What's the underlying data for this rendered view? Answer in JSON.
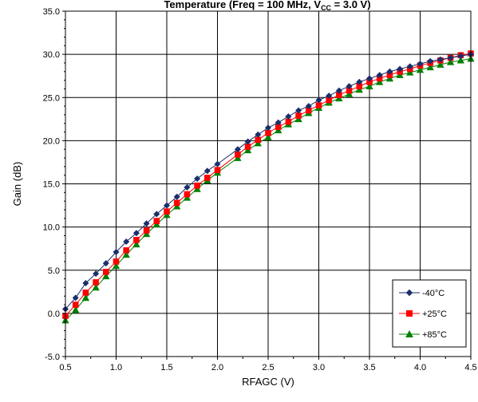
{
  "chart_data": {
    "type": "line",
    "title": {
      "prefix": "Temperature (Freq = 100 MHz, V",
      "subscript": "CC",
      "suffix": " = 3.0 V)"
    },
    "xlabel": "RFAGC (V)",
    "ylabel": "Gain (dB)",
    "xlim": [
      0.5,
      4.5
    ],
    "ylim": [
      -5.0,
      35.0
    ],
    "x_ticks": [
      "0.5",
      "1.0",
      "1.5",
      "2.0",
      "2.5",
      "3.0",
      "3.5",
      "4.0",
      "4.5"
    ],
    "y_ticks": [
      "-5.0",
      "0.0",
      "5.0",
      "10.0",
      "15.0",
      "20.0",
      "25.0",
      "30.0",
      "35.0"
    ],
    "grid": true,
    "legend_position": "bottom-right",
    "x": [
      0.5,
      0.6,
      0.7,
      0.8,
      0.9,
      1.0,
      1.1,
      1.2,
      1.3,
      1.4,
      1.5,
      1.6,
      1.7,
      1.8,
      1.9,
      2.0,
      2.2,
      2.3,
      2.4,
      2.5,
      2.6,
      2.7,
      2.8,
      2.9,
      3.0,
      3.1,
      3.2,
      3.3,
      3.4,
      3.5,
      3.6,
      3.7,
      3.8,
      3.9,
      4.0,
      4.1,
      4.2,
      4.3,
      4.4,
      4.5
    ],
    "series": [
      {
        "name": "-40°C",
        "color": "#1a2f6b",
        "marker": "diamond",
        "values": [
          0.5,
          1.8,
          3.5,
          4.6,
          5.8,
          7.1,
          8.3,
          9.3,
          10.4,
          11.5,
          12.5,
          13.5,
          14.6,
          15.6,
          16.5,
          17.3,
          19.0,
          19.9,
          20.7,
          21.5,
          22.1,
          22.8,
          23.5,
          24.0,
          24.7,
          25.2,
          25.8,
          26.3,
          26.8,
          27.2,
          27.6,
          28.0,
          28.3,
          28.6,
          28.9,
          29.2,
          29.4,
          29.6,
          29.8,
          30.0
        ]
      },
      {
        "name": "+25°C",
        "color": "#ff0000",
        "marker": "square",
        "values": [
          -0.3,
          1.0,
          2.4,
          3.6,
          4.8,
          6.0,
          7.3,
          8.5,
          9.6,
          10.7,
          11.8,
          12.8,
          13.8,
          14.8,
          15.7,
          16.6,
          18.4,
          19.3,
          20.1,
          20.9,
          21.6,
          22.2,
          22.9,
          23.5,
          24.1,
          24.7,
          25.3,
          25.8,
          26.3,
          26.8,
          27.2,
          27.6,
          28.0,
          28.3,
          28.7,
          29.0,
          29.3,
          29.6,
          29.9,
          30.1
        ]
      },
      {
        "name": "+85°C",
        "color": "#008000",
        "marker": "triangle",
        "values": [
          -0.8,
          0.4,
          1.8,
          3.0,
          4.3,
          5.5,
          6.8,
          8.0,
          9.2,
          10.3,
          11.4,
          12.4,
          13.4,
          14.4,
          15.4,
          16.3,
          18.0,
          18.9,
          19.7,
          20.4,
          21.2,
          21.9,
          22.5,
          23.2,
          23.8,
          24.4,
          24.9,
          25.4,
          25.9,
          26.3,
          26.8,
          27.2,
          27.6,
          27.9,
          28.2,
          28.5,
          28.8,
          29.1,
          29.3,
          29.5
        ]
      }
    ]
  }
}
